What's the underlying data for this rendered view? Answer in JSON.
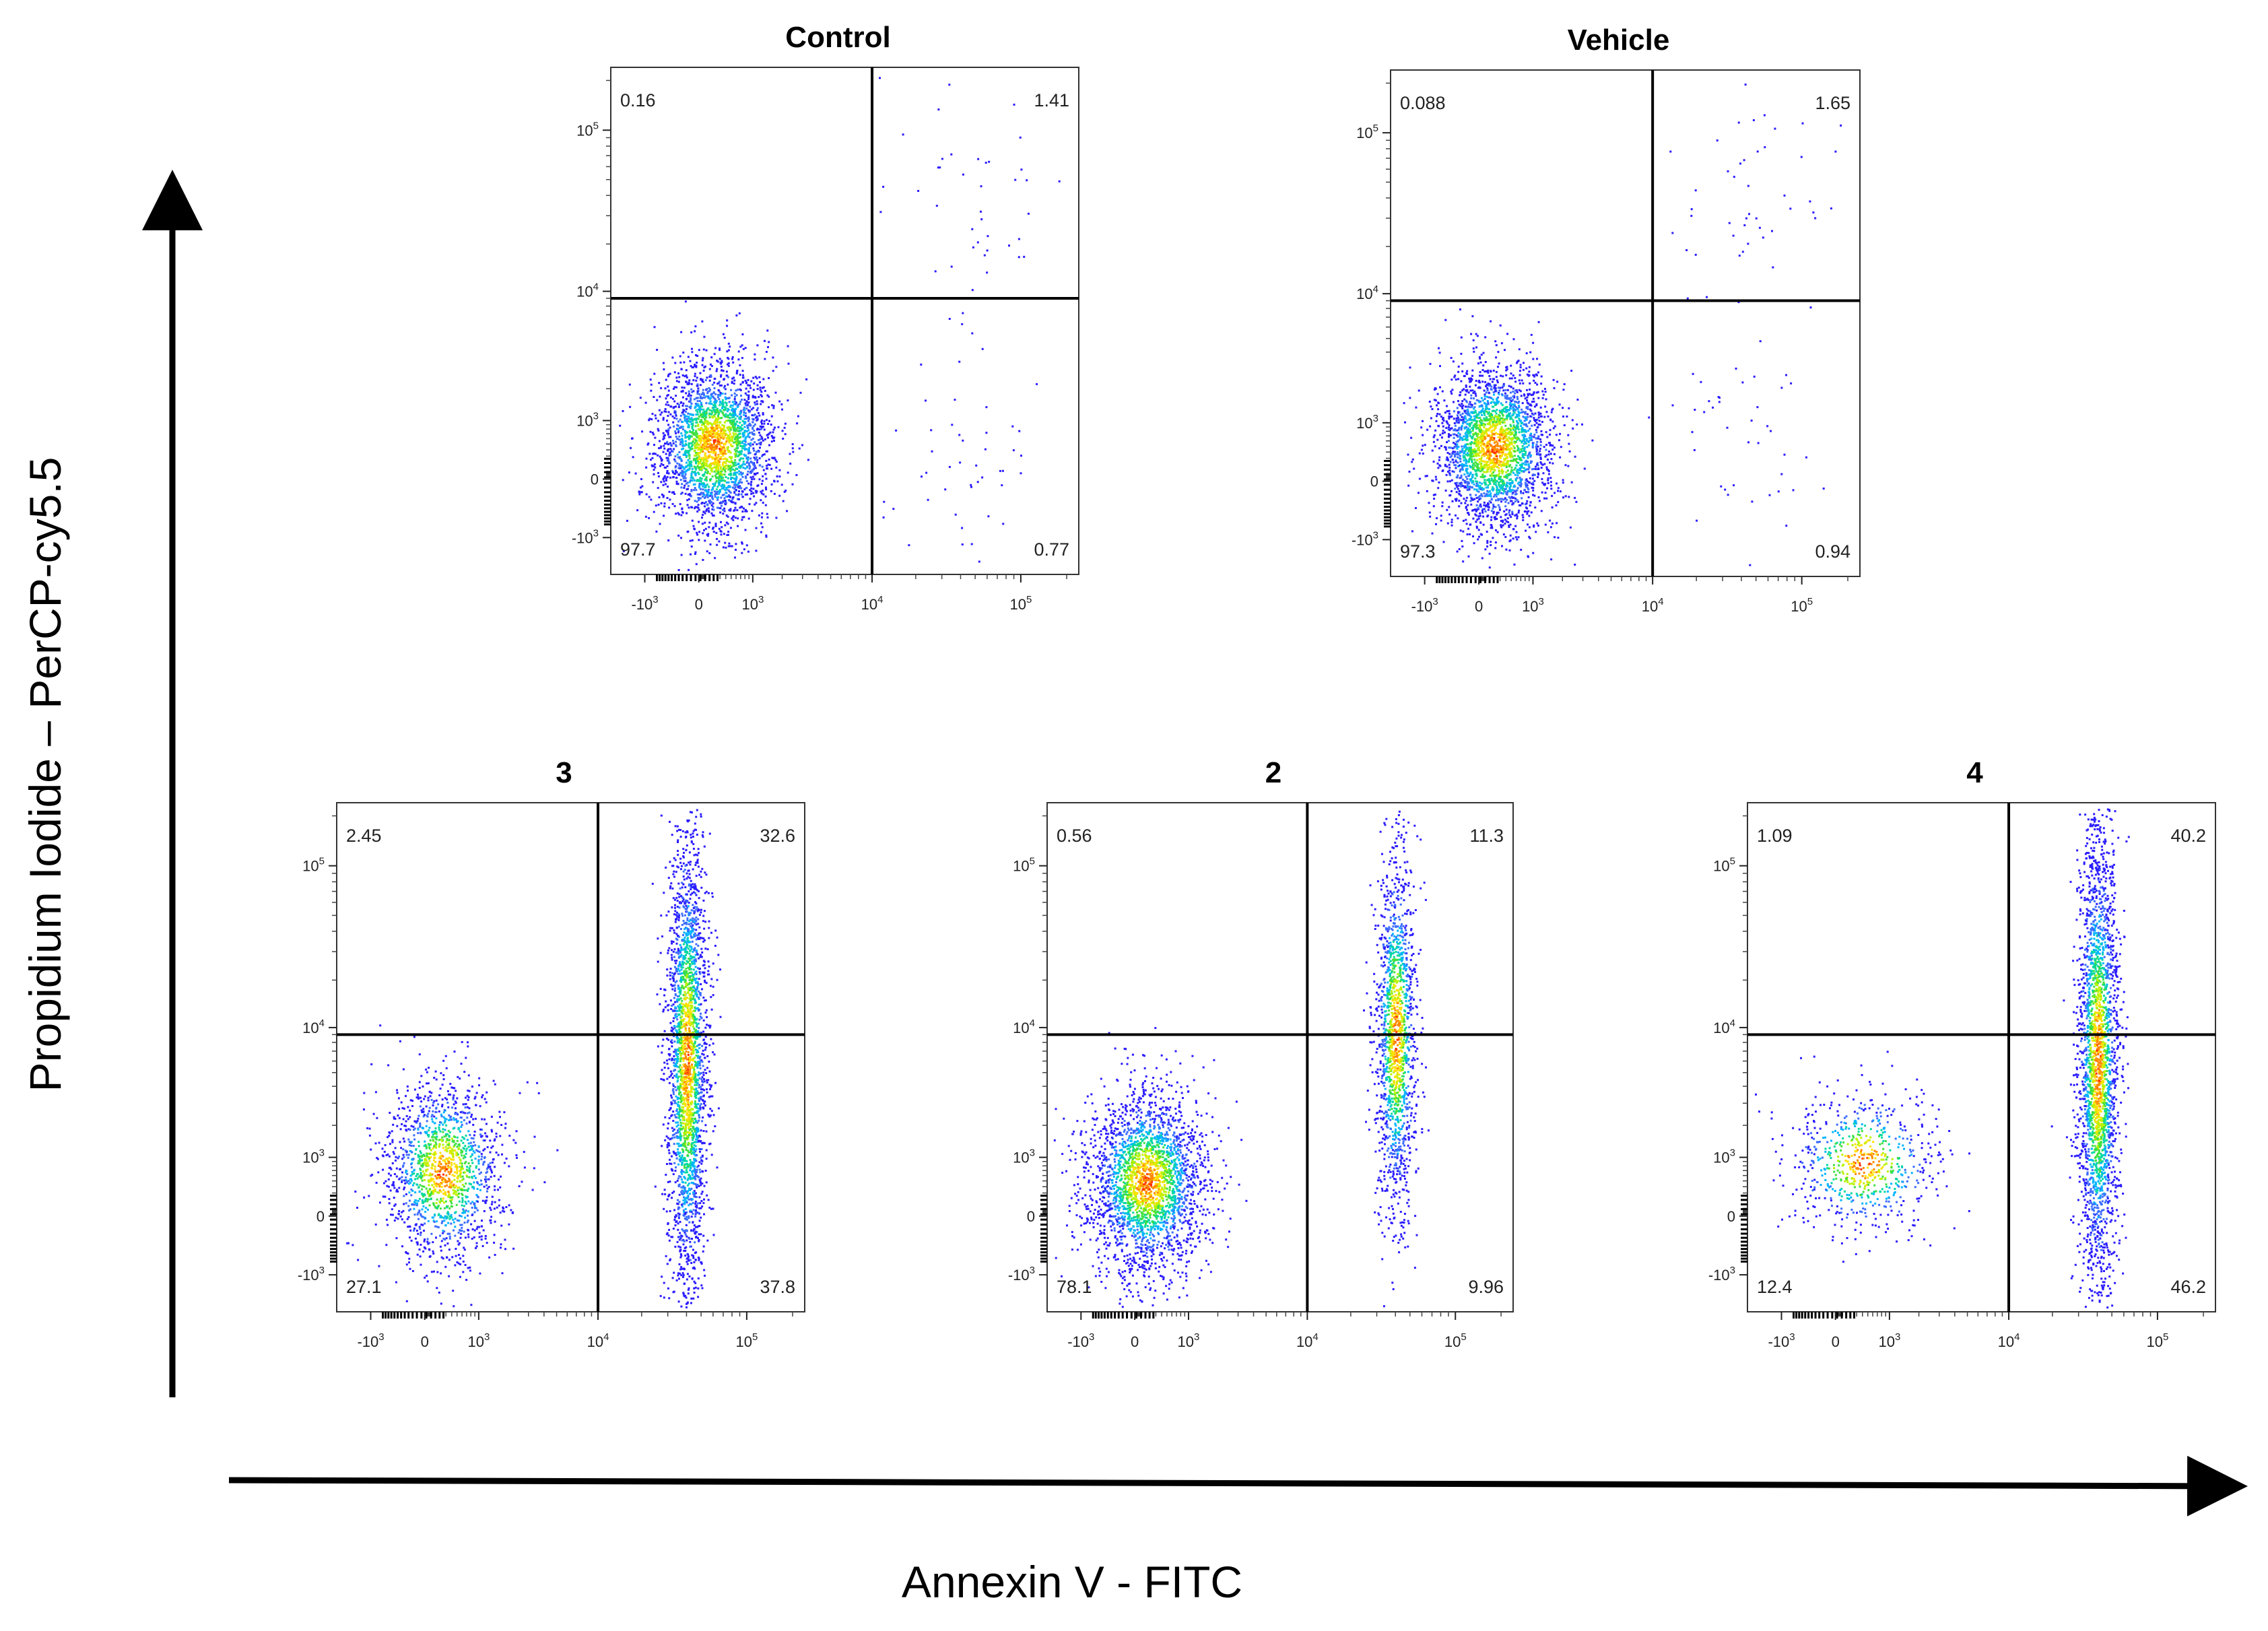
{
  "chart_data": {
    "type": "scatter",
    "figure": {
      "xlabel": "Annexin V - FITC",
      "ylabel": "Propidium Iodide – PerCP-cy5.5",
      "x_ticks": [
        "-10^3",
        "0",
        "10^3",
        "10^4",
        "10^5"
      ],
      "y_ticks": [
        "10^5",
        "10^4",
        "10^3",
        "0",
        "-10^3"
      ]
    },
    "panels": [
      {
        "title": "Control",
        "quadrants": {
          "upper_left": "0.16",
          "upper_right": "1.41",
          "lower_left": "97.7",
          "lower_right": "0.77"
        },
        "gate": {
          "x": 10000,
          "y": 9000
        },
        "populations": [
          {
            "name": "viable",
            "x_center": 200,
            "y_center": 500,
            "spread_x": 0.35,
            "spread_y": 0.45,
            "density": "high"
          },
          {
            "name": "early_apoptotic",
            "x_center": 40000,
            "y_center": 300,
            "spread_x": 0.5,
            "spread_y": 0.6,
            "density": "sparse"
          },
          {
            "name": "late_apoptotic",
            "x_center": 50000,
            "y_center": 40000,
            "spread_x": 0.5,
            "spread_y": 0.6,
            "density": "sparse"
          }
        ]
      },
      {
        "title": "Vehicle",
        "quadrants": {
          "upper_left": "0.088",
          "upper_right": "1.65",
          "lower_left": "97.3",
          "lower_right": "0.94"
        },
        "gate": {
          "x": 10000,
          "y": 9000
        },
        "populations": [
          {
            "name": "viable",
            "x_center": 200,
            "y_center": 500,
            "spread_x": 0.35,
            "spread_y": 0.45,
            "density": "high"
          },
          {
            "name": "early_apoptotic",
            "x_center": 40000,
            "y_center": 300,
            "spread_x": 0.5,
            "spread_y": 0.6,
            "density": "sparse"
          },
          {
            "name": "late_apoptotic",
            "x_center": 50000,
            "y_center": 40000,
            "spread_x": 0.5,
            "spread_y": 0.6,
            "density": "sparse"
          }
        ]
      },
      {
        "title": "3",
        "quadrants": {
          "upper_left": "2.45",
          "upper_right": "32.6",
          "lower_left": "27.1",
          "lower_right": "37.8"
        },
        "gate": {
          "x": 10000,
          "y": 9000
        },
        "populations": [
          {
            "name": "viable",
            "x_center": 250,
            "y_center": 700,
            "spread_x": 0.35,
            "spread_y": 0.5,
            "density": "medium"
          },
          {
            "name": "apoptotic_column",
            "x_center": 40000,
            "y_center": 6000,
            "spread_x": 0.12,
            "spread_y": 1.3,
            "density": "high"
          }
        ]
      },
      {
        "title": "2",
        "quadrants": {
          "upper_left": "0.56",
          "upper_right": "11.3",
          "lower_left": "78.1",
          "lower_right": "9.96"
        },
        "gate": {
          "x": 10000,
          "y": 9000
        },
        "populations": [
          {
            "name": "viable",
            "x_center": 150,
            "y_center": 500,
            "spread_x": 0.35,
            "spread_y": 0.5,
            "density": "high"
          },
          {
            "name": "apoptotic_column",
            "x_center": 40000,
            "y_center": 9000,
            "spread_x": 0.12,
            "spread_y": 1.0,
            "density": "medium"
          }
        ]
      },
      {
        "title": "4",
        "quadrants": {
          "upper_left": "1.09",
          "upper_right": "40.2",
          "lower_left": "12.4",
          "lower_right": "46.2"
        },
        "gate": {
          "x": 10000,
          "y": 9000
        },
        "populations": [
          {
            "name": "viable",
            "x_center": 400,
            "y_center": 900,
            "spread_x": 0.45,
            "spread_y": 0.4,
            "density": "low"
          },
          {
            "name": "apoptotic_column",
            "x_center": 40000,
            "y_center": 6000,
            "spread_x": 0.12,
            "spread_y": 1.3,
            "density": "high"
          }
        ]
      }
    ]
  }
}
